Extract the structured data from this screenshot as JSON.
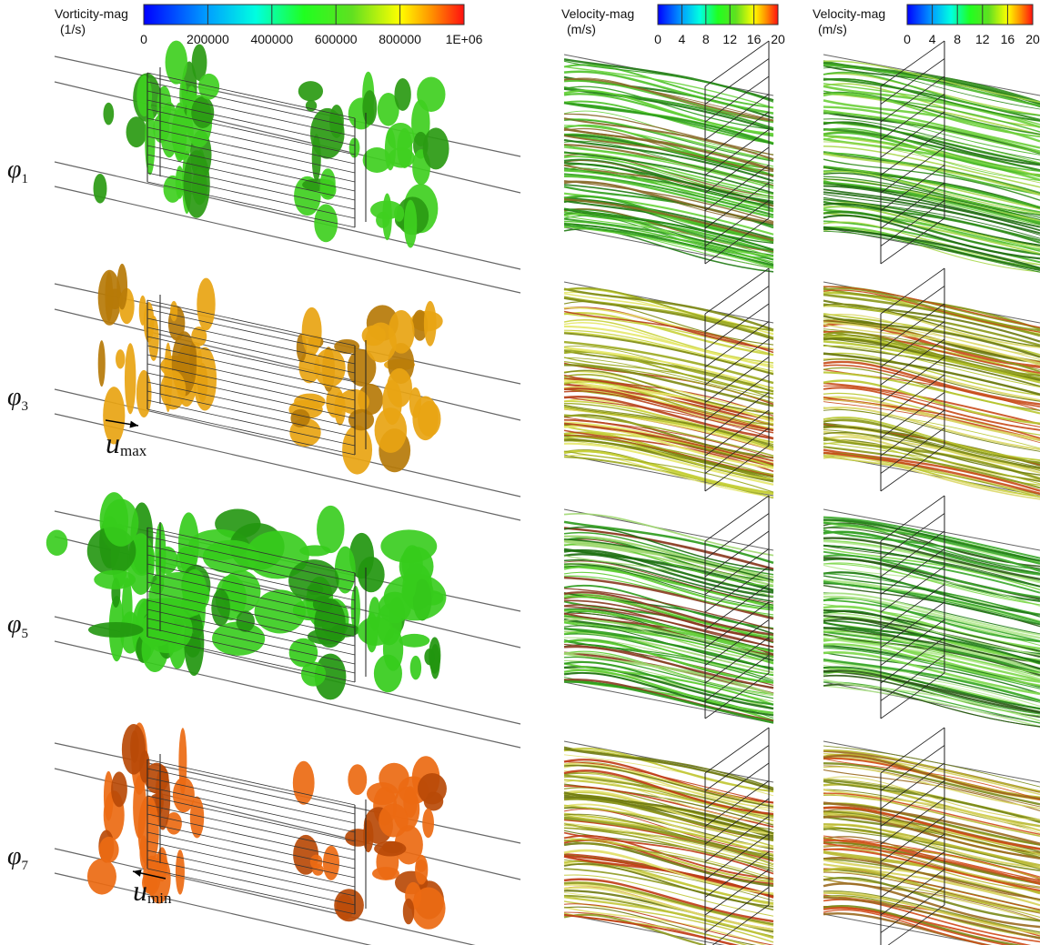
{
  "legends": [
    {
      "title": "Vorticity-mag",
      "unit": "(1/s)",
      "ticks": [
        0,
        200000,
        400000,
        600000,
        800000,
        {
          "value": 1000000,
          "label": "1E+06"
        }
      ],
      "range": [
        0,
        1000000
      ]
    },
    {
      "title": "Velocity-mag",
      "unit": "(m/s)",
      "ticks": [
        0,
        4,
        8,
        12,
        16,
        20
      ],
      "range": [
        0,
        20
      ]
    },
    {
      "title": "Velocity-mag",
      "unit": "(m/s)",
      "ticks": [
        0,
        4,
        8,
        12,
        16,
        20
      ],
      "range": [
        0,
        20
      ]
    }
  ],
  "rows": [
    {
      "symbol": "φ",
      "subscript": "1"
    },
    {
      "symbol": "φ",
      "subscript": "3"
    },
    {
      "symbol": "φ",
      "subscript": "5"
    },
    {
      "symbol": "φ",
      "subscript": "7"
    }
  ],
  "annotations": [
    {
      "symbol": "u",
      "subscript": "max"
    },
    {
      "symbol": "u",
      "subscript": "min"
    }
  ]
}
